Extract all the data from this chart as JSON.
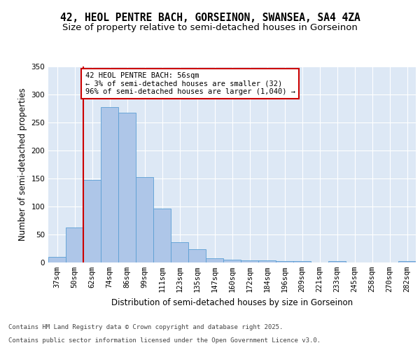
{
  "title_line1": "42, HEOL PENTRE BACH, GORSEINON, SWANSEA, SA4 4ZA",
  "title_line2": "Size of property relative to semi-detached houses in Gorseinon",
  "xlabel": "Distribution of semi-detached houses by size in Gorseinon",
  "ylabel": "Number of semi-detached properties",
  "categories": [
    "37sqm",
    "50sqm",
    "62sqm",
    "74sqm",
    "86sqm",
    "99sqm",
    "111sqm",
    "123sqm",
    "135sqm",
    "147sqm",
    "160sqm",
    "172sqm",
    "184sqm",
    "196sqm",
    "209sqm",
    "221sqm",
    "233sqm",
    "245sqm",
    "258sqm",
    "270sqm",
    "282sqm"
  ],
  "values": [
    10,
    63,
    148,
    278,
    268,
    153,
    96,
    36,
    24,
    8,
    5,
    4,
    4,
    3,
    2,
    0,
    2,
    0,
    0,
    0,
    2
  ],
  "bar_color": "#aec6e8",
  "bar_edge_color": "#5a9fd4",
  "vline_x": 1.5,
  "vline_color": "#cc0000",
  "annotation_text": "42 HEOL PENTRE BACH: 56sqm\n← 3% of semi-detached houses are smaller (32)\n96% of semi-detached houses are larger (1,040) →",
  "annotation_box_color": "#cc0000",
  "ylim": [
    0,
    350
  ],
  "yticks": [
    0,
    50,
    100,
    150,
    200,
    250,
    300,
    350
  ],
  "background_color": "#dde8f5",
  "footer_line1": "Contains HM Land Registry data © Crown copyright and database right 2025.",
  "footer_line2": "Contains public sector information licensed under the Open Government Licence v3.0.",
  "title_fontsize": 10.5,
  "subtitle_fontsize": 9.5,
  "axis_label_fontsize": 8.5,
  "tick_fontsize": 7.5,
  "annotation_fontsize": 7.5,
  "footer_fontsize": 6.5
}
